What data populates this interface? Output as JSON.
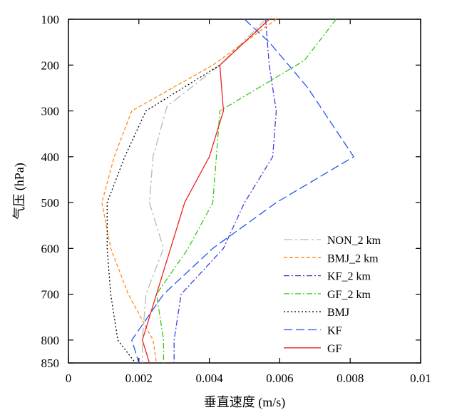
{
  "chart_data": {
    "type": "line",
    "xlabel": "垂直速度 (m/s)",
    "ylabel": "气压 (hPa)",
    "xlim": [
      0,
      0.01
    ],
    "ylim": [
      850,
      100
    ],
    "y_reversed": true,
    "x_ticks": [
      "0",
      "0.002",
      "0.004",
      "0.006",
      "0.008",
      "0.01"
    ],
    "y_ticks": [
      "100",
      "200",
      "300",
      "400",
      "500",
      "600",
      "700",
      "800",
      "850"
    ],
    "legend_position": "bottom-right",
    "series": [
      {
        "name": "NON_2 km",
        "color": "#b4bcb4",
        "dash": "12,4,3,4",
        "x": [
          0.0056,
          0.0043,
          0.0028,
          0.0024,
          0.0023,
          0.0027,
          0.0022,
          0.0021,
          0.0021
        ],
        "y": [
          100,
          200,
          290,
          400,
          500,
          600,
          700,
          800,
          850
        ]
      },
      {
        "name": "BMJ_2 km",
        "color": "#ff8c1a",
        "dash": "5,3",
        "x": [
          0.0059,
          0.0041,
          0.0018,
          0.0013,
          0.00095,
          0.0012,
          0.0017,
          0.0024,
          0.0025
        ],
        "y": [
          100,
          200,
          300,
          400,
          500,
          600,
          700,
          800,
          850
        ]
      },
      {
        "name": "KF_2 km",
        "color": "#4040e0",
        "dash": "8,3,2,3",
        "x": [
          0.0056,
          0.0057,
          0.0059,
          0.0058,
          0.005,
          0.0044,
          0.0032,
          0.003,
          0.003
        ],
        "y": [
          100,
          200,
          300,
          400,
          500,
          600,
          700,
          800,
          850
        ]
      },
      {
        "name": "GF_2 km",
        "color": "#33cc11",
        "dash": "8,3,2,3",
        "x": [
          0.0076,
          0.0067,
          0.0043,
          0.0042,
          0.0041,
          0.0034,
          0.0025,
          0.0027,
          0.0027
        ],
        "y": [
          100,
          190,
          300,
          400,
          500,
          600,
          700,
          800,
          850
        ]
      },
      {
        "name": "BMJ",
        "color": "#000000",
        "dash": "2,3",
        "x": [
          0.0057,
          0.0043,
          0.0022,
          0.0016,
          0.0011,
          0.0011,
          0.0012,
          0.0014,
          0.0019
        ],
        "y": [
          100,
          200,
          300,
          400,
          500,
          600,
          700,
          800,
          850
        ]
      },
      {
        "name": "KF",
        "color": "#2255ee",
        "dash": "12,5",
        "x": [
          0.005,
          0.0057,
          0.0068,
          0.0081,
          0.0059,
          0.0041,
          0.0027,
          0.0018,
          0.002
        ],
        "y": [
          100,
          150,
          250,
          400,
          500,
          600,
          700,
          800,
          850
        ]
      },
      {
        "name": "GF",
        "color": "#ee2222",
        "dash": "",
        "x": [
          0.0057,
          0.0043,
          0.0044,
          0.004,
          0.0033,
          0.0029,
          0.0025,
          0.0021,
          0.0023
        ],
        "y": [
          100,
          200,
          300,
          400,
          500,
          600,
          700,
          800,
          850
        ]
      }
    ]
  }
}
